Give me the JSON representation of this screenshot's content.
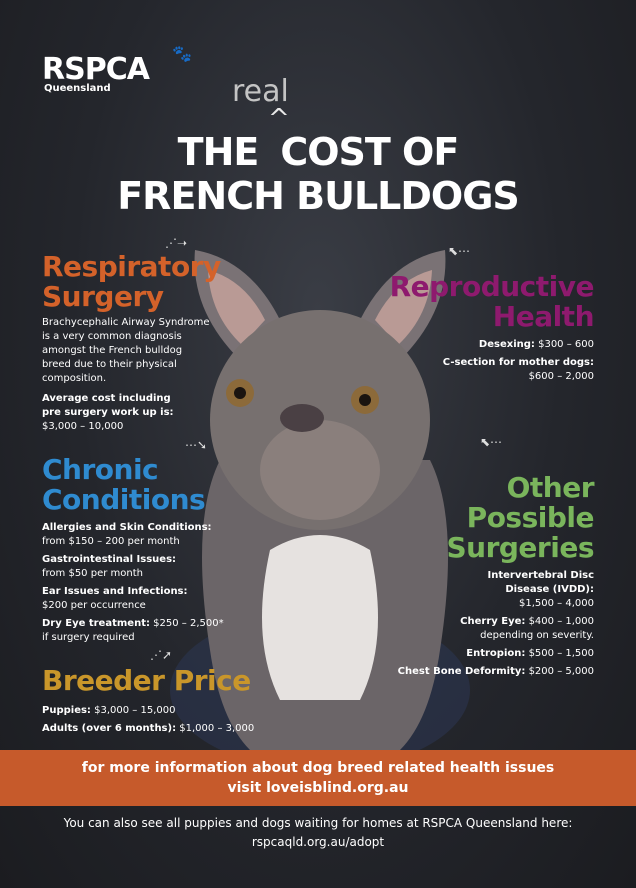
{
  "logo": {
    "name": "RSPCA",
    "region": "Queensland"
  },
  "title": {
    "line1_pre": "THE",
    "insert": "real",
    "line1_post": "COST OF",
    "line2": "FRENCH BULLDOGS"
  },
  "colors": {
    "respiratory": "#d4622a",
    "reproductive": "#8e1a6e",
    "chronic": "#2f8bd0",
    "other": "#7ab55c",
    "breeder": "#c9962a",
    "banner": "#c65a2b",
    "background": "#23252b"
  },
  "respiratory": {
    "heading1": "Respiratory",
    "heading2": "Surgery",
    "body": "Brachycephalic Airway Syndrome is a very common diagnosis amongst the French bulldog breed due to their physical composition.",
    "cost_label": "Average cost including pre surgery work up is:",
    "cost": "$3,000 – 10,000"
  },
  "reproductive": {
    "heading1": "Reproductive",
    "heading2": "Health",
    "items": [
      {
        "label": "Desexing:",
        "value": "$300 – 600"
      },
      {
        "label": "C-section for mother dogs:",
        "value": "$600 – 2,000"
      }
    ]
  },
  "chronic": {
    "heading1": "Chronic",
    "heading2": "Conditions",
    "items": [
      {
        "label": "Allergies and Skin Conditions:",
        "value": "from $150 – 200 per month"
      },
      {
        "label": "Gastrointestinal Issues:",
        "value": "from $50 per month"
      },
      {
        "label": "Ear Issues and Infections:",
        "value": "$200 per occurrence"
      },
      {
        "label": "Dry Eye treatment:",
        "value": "$250 – 2,500*",
        "note": "if surgery required"
      }
    ]
  },
  "other": {
    "heading1": "Other",
    "heading2": "Possible",
    "heading3": "Surgeries",
    "items": [
      {
        "label": "Intervertebral Disc Disease (IVDD):",
        "value": "$1,500 – 4,000"
      },
      {
        "label": "Cherry Eye:",
        "value": "$400 – 1,000",
        "note": "depending on severity."
      },
      {
        "label": "Entropion:",
        "value": "$500 – 1,500"
      },
      {
        "label": "Chest Bone Deformity:",
        "value": "$200 – 5,000"
      }
    ]
  },
  "breeder": {
    "heading": "Breeder Price",
    "items": [
      {
        "label": "Puppies:",
        "value": "$3,000 – 15,000"
      },
      {
        "label": "Adults (over 6 months):",
        "value": "$1,000 – 3,000"
      }
    ]
  },
  "banner": {
    "line1": "for more information about dog breed related health issues",
    "line2": "visit loveisblind.org.au"
  },
  "footer": {
    "line1": "You can also see all puppies and dogs waiting for homes at RSPCA Queensland here:",
    "line2": "rspcaqld.org.au/adopt"
  }
}
